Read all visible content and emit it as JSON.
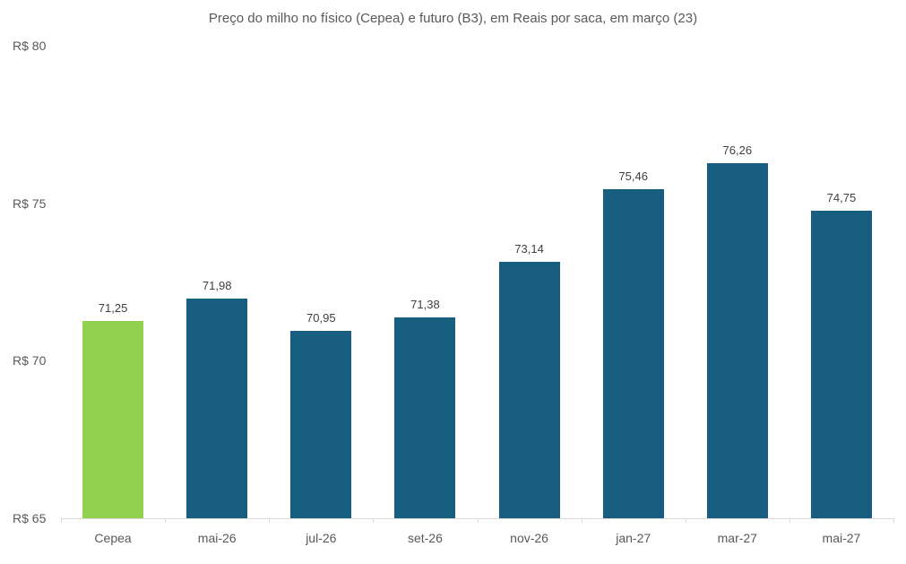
{
  "chart_data": {
    "type": "bar",
    "title": "Preço do milho no físico (Cepea) e futuro (B3), em Reais por saca, em março (23)",
    "xlabel": "",
    "ylabel": "",
    "ylim": [
      65,
      80
    ],
    "yticks": [
      "R$ 65",
      "R$ 70",
      "R$ 75",
      "R$ 80"
    ],
    "ytick_values": [
      65,
      70,
      75,
      80
    ],
    "grid": false,
    "legend": null,
    "categories": [
      "Cepea",
      "mai-26",
      "jul-26",
      "set-26",
      "nov-26",
      "jan-27",
      "mar-27",
      "mai-27"
    ],
    "values": [
      71.25,
      71.98,
      70.95,
      71.38,
      73.14,
      75.46,
      76.26,
      74.75
    ],
    "value_labels": [
      "71,25",
      "71,98",
      "70,95",
      "71,38",
      "73,14",
      "75,46",
      "76,26",
      "74,75"
    ],
    "colors": [
      "#92D050",
      "#175E81",
      "#175E81",
      "#175E81",
      "#175E81",
      "#175E81",
      "#175E81",
      "#175E81"
    ]
  }
}
